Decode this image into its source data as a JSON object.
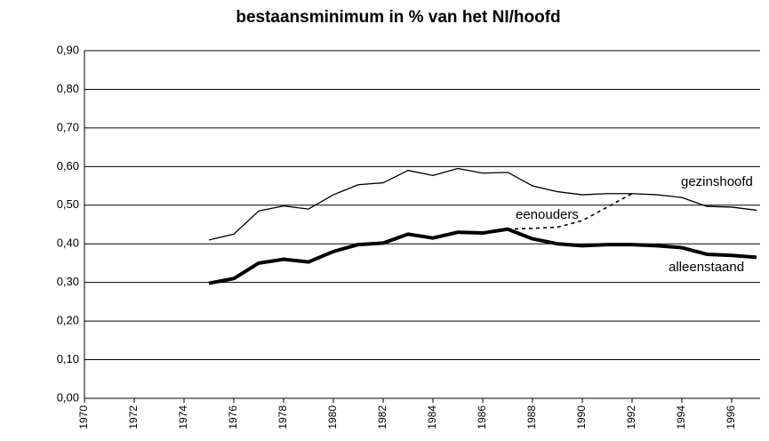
{
  "chart_data": {
    "type": "line",
    "title": "bestaansminimum in % van het NI/hoofd",
    "x": [
      1970,
      1971,
      1972,
      1973,
      1974,
      1975,
      1976,
      1977,
      1978,
      1979,
      1980,
      1981,
      1982,
      1983,
      1984,
      1985,
      1986,
      1987,
      1988,
      1989,
      1990,
      1991,
      1992,
      1993,
      1994,
      1995,
      1996,
      1997
    ],
    "xlim": [
      1970,
      1997
    ],
    "xticks": [
      1970,
      1972,
      1974,
      1976,
      1978,
      1980,
      1982,
      1984,
      1986,
      1988,
      1990,
      1992,
      1994,
      1996
    ],
    "ylim": [
      0,
      0.9
    ],
    "yticks": [
      {
        "value": 0,
        "label": "0,00"
      },
      {
        "value": 0.1,
        "label": "0,10"
      },
      {
        "value": 0.2,
        "label": "0,20"
      },
      {
        "value": 0.3,
        "label": "0,30"
      },
      {
        "value": 0.4,
        "label": "0,40"
      },
      {
        "value": 0.5,
        "label": "0,50"
      },
      {
        "value": 0.6,
        "label": "0,60"
      },
      {
        "value": 0.7,
        "label": "0,70"
      },
      {
        "value": 0.8,
        "label": "0,80"
      },
      {
        "value": 0.9,
        "label": "0,90"
      }
    ],
    "grid": true,
    "series": [
      {
        "name": "gezinshoofd",
        "color": "#000000",
        "line_width": 1.3,
        "dashed": false,
        "values": [
          null,
          null,
          null,
          null,
          null,
          0.41,
          0.425,
          0.485,
          0.498,
          0.49,
          0.527,
          0.553,
          0.558,
          0.59,
          0.577,
          0.595,
          0.583,
          0.585,
          0.55,
          0.535,
          0.527,
          0.53,
          0.53,
          0.527,
          0.52,
          0.497,
          0.495,
          0.487
        ]
      },
      {
        "name": "eenouders",
        "color": "#000000",
        "line_width": 1.6,
        "dashed": true,
        "values": [
          null,
          null,
          null,
          null,
          null,
          null,
          null,
          null,
          null,
          null,
          null,
          null,
          null,
          null,
          null,
          null,
          null,
          0.438,
          0.44,
          0.443,
          0.46,
          0.495,
          0.53,
          null,
          null,
          null,
          null,
          null
        ]
      },
      {
        "name": "alleenstaand",
        "color": "#000000",
        "line_width": 4,
        "dashed": false,
        "values": [
          null,
          null,
          null,
          null,
          null,
          0.298,
          0.31,
          0.35,
          0.36,
          0.353,
          0.38,
          0.398,
          0.402,
          0.425,
          0.415,
          0.43,
          0.428,
          0.438,
          0.413,
          0.4,
          0.395,
          0.398,
          0.398,
          0.395,
          0.39,
          0.373,
          0.37,
          0.365
        ]
      }
    ]
  }
}
